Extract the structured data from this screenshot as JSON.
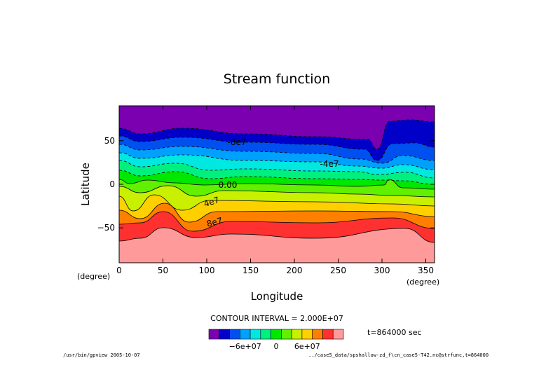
{
  "title": "Stream function",
  "chart_data": {
    "type": "heatmap",
    "title": "Stream function",
    "xlabel": "Longitude",
    "ylabel": "Latitude",
    "x_unit": "(degree)",
    "y_unit": "(degree)",
    "xlim": [
      0,
      360
    ],
    "ylim": [
      -90,
      90
    ],
    "xticks": [
      "0",
      "50",
      "100",
      "150",
      "200",
      "250",
      "300",
      "350"
    ],
    "yticks": [
      "50",
      "0",
      "−50"
    ],
    "contour_interval_label": "CONTOUR INTERVAL = 2.000E+07",
    "contour_levels": [
      -120000000.0,
      -100000000.0,
      -80000000.0,
      -60000000.0,
      -40000000.0,
      -20000000.0,
      0,
      20000000.0,
      40000000.0,
      60000000.0,
      80000000.0,
      100000000.0,
      120000000.0
    ],
    "contour_labels": [
      "-8e7",
      "-4e7",
      "0.00",
      "4e7",
      "8e7"
    ],
    "colorbar": {
      "colors": [
        "#7a00b0",
        "#0000c8",
        "#0050f0",
        "#00a0ff",
        "#00e8e0",
        "#00f080",
        "#00e800",
        "#60f000",
        "#c8f000",
        "#ffd000",
        "#ff8000",
        "#ff3030",
        "#ff9a9a"
      ],
      "tick_labels": [
        "−6e+07",
        "0",
        "6e+07"
      ]
    },
    "time_label": "t=864000 sec"
  },
  "footer": {
    "left": "/usr/bin/gpview  2005-10-07",
    "right": "../case5_data/spshallow-zd_f\\cn_case5-T42.nc@strfunc,t=864000"
  }
}
